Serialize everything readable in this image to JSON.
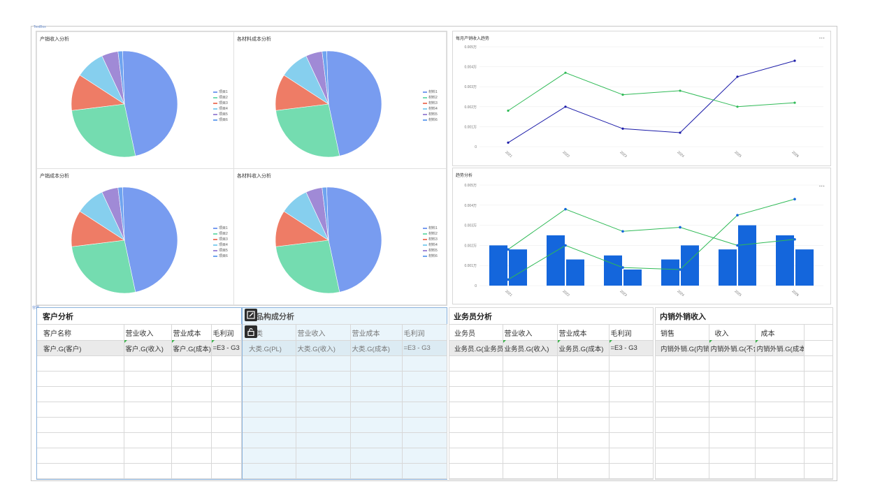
{
  "top_container": {
    "label": "TextBox"
  },
  "pies": [
    {
      "title": "产销收入分析",
      "legend": [
        "项目1",
        "项目2",
        "项目3",
        "项目4",
        "项目5",
        "项目6"
      ]
    },
    {
      "title": "各材料成本分析",
      "legend": [
        "材料1",
        "材料2",
        "材料3",
        "材料4",
        "材料5",
        "材料6"
      ]
    },
    {
      "title": "产销成本分析",
      "legend": [
        "项目1",
        "项目2",
        "项目3",
        "项目4",
        "项目5",
        "项目6"
      ]
    },
    {
      "title": "各材料收入分析",
      "legend": [
        "材料1",
        "材料2",
        "材料3",
        "材料4",
        "材料5",
        "材料6"
      ]
    }
  ],
  "pie_colors": [
    "#789cf0",
    "#74dcb0",
    "#ee7c66",
    "#86cfee",
    "#a08ad6",
    "#6fa4ef"
  ],
  "line_panel": {
    "title": "每月产销收入趋势",
    "menu": "...",
    "chart_data": {
      "type": "line",
      "categories": [
        "2021",
        "2022",
        "2023",
        "2024",
        "2025",
        "2026"
      ],
      "y_ticks": [
        "0",
        "0.001万",
        "0.002万",
        "0.003万",
        "0.004万",
        "0.005万"
      ],
      "series": [
        {
          "color": "#1a1aa8",
          "values": [
            0.0002,
            0.002,
            0.0009,
            0.0007,
            0.0035,
            0.0043
          ]
        },
        {
          "color": "#2fba56",
          "values": [
            0.0018,
            0.0037,
            0.0026,
            0.0028,
            0.002,
            0.0022
          ]
        }
      ],
      "ylim": [
        0,
        0.005
      ]
    }
  },
  "combo_panel": {
    "title": "趋势分析",
    "menu": "...",
    "chart_data": {
      "type": "bar",
      "categories": [
        "2021",
        "2022",
        "2023",
        "2024",
        "2025",
        "2026"
      ],
      "y_ticks": [
        "0",
        "0.001万",
        "0.002万",
        "0.003万",
        "0.004万",
        "0.005万"
      ],
      "bar_series": [
        {
          "color": "#1466dc",
          "values": [
            0.002,
            0.0025,
            0.0015,
            0.0013,
            0.0018,
            0.0025
          ]
        },
        {
          "color": "#1466dc",
          "values": [
            0.0018,
            0.0013,
            0.0008,
            0.002,
            0.003,
            0.0018
          ]
        }
      ],
      "series": [
        {
          "color": "#2fba56",
          "values": [
            0.0018,
            0.0038,
            0.0027,
            0.0029,
            0.002,
            0.0023
          ]
        },
        {
          "color": "#2fba56",
          "values": [
            0.0003,
            0.002,
            0.0009,
            0.0008,
            0.0035,
            0.0043
          ]
        }
      ],
      "ylim": [
        0,
        0.005
      ]
    }
  },
  "bottom_container": {
    "label": "容器"
  },
  "tables": [
    {
      "title": "客户分析",
      "headers": [
        "客户名称",
        "营业收入",
        "营业成本",
        "毛利润"
      ],
      "row": [
        "客户.G(客户)",
        "客户.G(收入)",
        "客户.G(成本)",
        "=E3 - G3"
      ]
    },
    {
      "title": "产品构成分析",
      "headers": [
        "大类",
        "营业收入",
        "营业成本",
        "毛利润"
      ],
      "row": [
        "大类.G(PL)",
        "大类.G(收入)",
        "大类.G(成本)",
        "=E3 - G3"
      ]
    },
    {
      "title": "业务员分析",
      "headers": [
        "业务员",
        "营业收入",
        "营业成本",
        "毛利润"
      ],
      "row": [
        "业务员.G(业务员)",
        "业务员.G(收入)",
        "业务员.G(成本)",
        "=E3 - G3"
      ]
    },
    {
      "title": "内销外销收入",
      "headers": [
        "销售",
        "收入",
        "成本"
      ],
      "row": [
        "内销外销.G(内销)",
        "内销外销.G(不含",
        "内销外销.G(成本"
      ]
    }
  ]
}
